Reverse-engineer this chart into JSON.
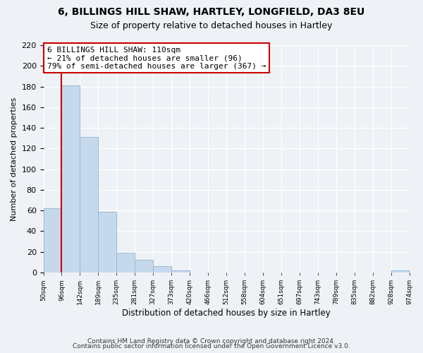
{
  "title": "6, BILLINGS HILL SHAW, HARTLEY, LONGFIELD, DA3 8EU",
  "subtitle": "Size of property relative to detached houses in Hartley",
  "xlabel": "Distribution of detached houses by size in Hartley",
  "ylabel": "Number of detached properties",
  "bar_color": "#c6d9ec",
  "bar_edge_color": "#9ab8d4",
  "vline_color": "#cc0000",
  "bar_heights": [
    62,
    181,
    131,
    59,
    19,
    12,
    6,
    2,
    0,
    0,
    0,
    0,
    0,
    0,
    0,
    0,
    0,
    0,
    0,
    2
  ],
  "tick_labels": [
    "50sqm",
    "96sqm",
    "142sqm",
    "189sqm",
    "235sqm",
    "281sqm",
    "327sqm",
    "373sqm",
    "420sqm",
    "466sqm",
    "512sqm",
    "558sqm",
    "604sqm",
    "651sqm",
    "697sqm",
    "743sqm",
    "789sqm",
    "835sqm",
    "882sqm",
    "928sqm",
    "974sqm"
  ],
  "ylim": [
    0,
    220
  ],
  "yticks": [
    0,
    20,
    40,
    60,
    80,
    100,
    120,
    140,
    160,
    180,
    200,
    220
  ],
  "annotation_title": "6 BILLINGS HILL SHAW: 110sqm",
  "annotation_line1": "← 21% of detached houses are smaller (96)",
  "annotation_line2": "79% of semi-detached houses are larger (367) →",
  "footnote1": "Contains HM Land Registry data © Crown copyright and database right 2024.",
  "footnote2": "Contains public sector information licensed under the Open Government Licence v3.0.",
  "background_color": "#eef2f7",
  "grid_color": "#ffffff",
  "vline_bin_index": 1
}
